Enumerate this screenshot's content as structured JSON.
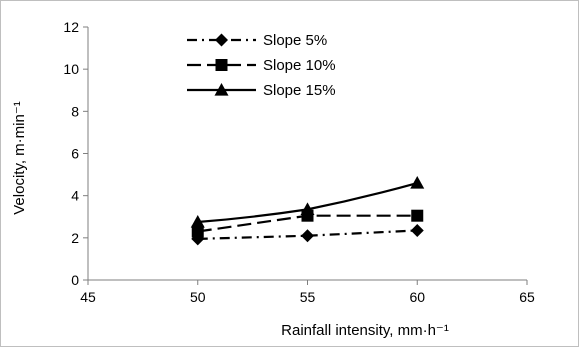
{
  "chart_data": {
    "type": "line",
    "xlabel": "Rainfall intensity, mm·h⁻¹",
    "ylabel": "Velocity, m·min⁻¹",
    "xlim": [
      45,
      65
    ],
    "ylim": [
      0,
      12
    ],
    "xticks": [
      45,
      50,
      55,
      60,
      65
    ],
    "yticks": [
      0,
      2,
      4,
      6,
      8,
      10,
      12
    ],
    "x": [
      50,
      55,
      60
    ],
    "grid": false,
    "legend_position": "top-left",
    "series": [
      {
        "name": "Slope 5%",
        "values": [
          1.95,
          2.1,
          2.35
        ],
        "marker": "diamond",
        "line_style": "dash-dot",
        "color": "#000000"
      },
      {
        "name": "Slope 10%",
        "values": [
          2.3,
          3.05,
          3.05
        ],
        "marker": "square",
        "line_style": "dash",
        "color": "#000000"
      },
      {
        "name": "Slope 15%",
        "values": [
          2.75,
          3.35,
          4.6
        ],
        "marker": "triangle",
        "line_style": "solid",
        "color": "#000000"
      }
    ]
  }
}
